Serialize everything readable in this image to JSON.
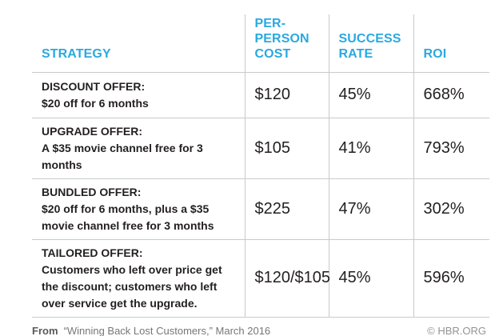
{
  "chart_data": {
    "type": "table",
    "columns": [
      "STRATEGY",
      "PER-PERSON COST",
      "SUCCESS RATE",
      "ROI"
    ],
    "rows": [
      {
        "strategy_title": "DISCOUNT OFFER:",
        "strategy_detail": "$20 off for 6 months",
        "cost": "$120",
        "success_rate": "45%",
        "roi": "668%"
      },
      {
        "strategy_title": "UPGRADE OFFER:",
        "strategy_detail": "A $35 movie channel free for 3 months",
        "cost": "$105",
        "success_rate": "41%",
        "roi": "793%"
      },
      {
        "strategy_title": "BUNDLED OFFER:",
        "strategy_detail": "$20 off for 6 months, plus a $35 movie channel free for 3 months",
        "cost": "$225",
        "success_rate": "47%",
        "roi": "302%"
      },
      {
        "strategy_title": "TAILORED OFFER:",
        "strategy_detail": "Customers who left over price get the discount; customers who left over service get the upgrade.",
        "cost": "$120/$105",
        "success_rate": "45%",
        "roi": "596%"
      }
    ],
    "grid": "horizontal-and-vertical-rules",
    "legend_position": "none"
  },
  "footer": {
    "from_label": "From",
    "source": "“Winning Back Lost Customers,” March 2016",
    "credit": "© HBR.ORG"
  },
  "colors": {
    "header_text": "#29a9e0",
    "body_text": "#231f20",
    "rule_line": "#c9cacb",
    "footer_text": "#76777a",
    "footer_from": "#58595b",
    "credit_text": "#919396"
  }
}
